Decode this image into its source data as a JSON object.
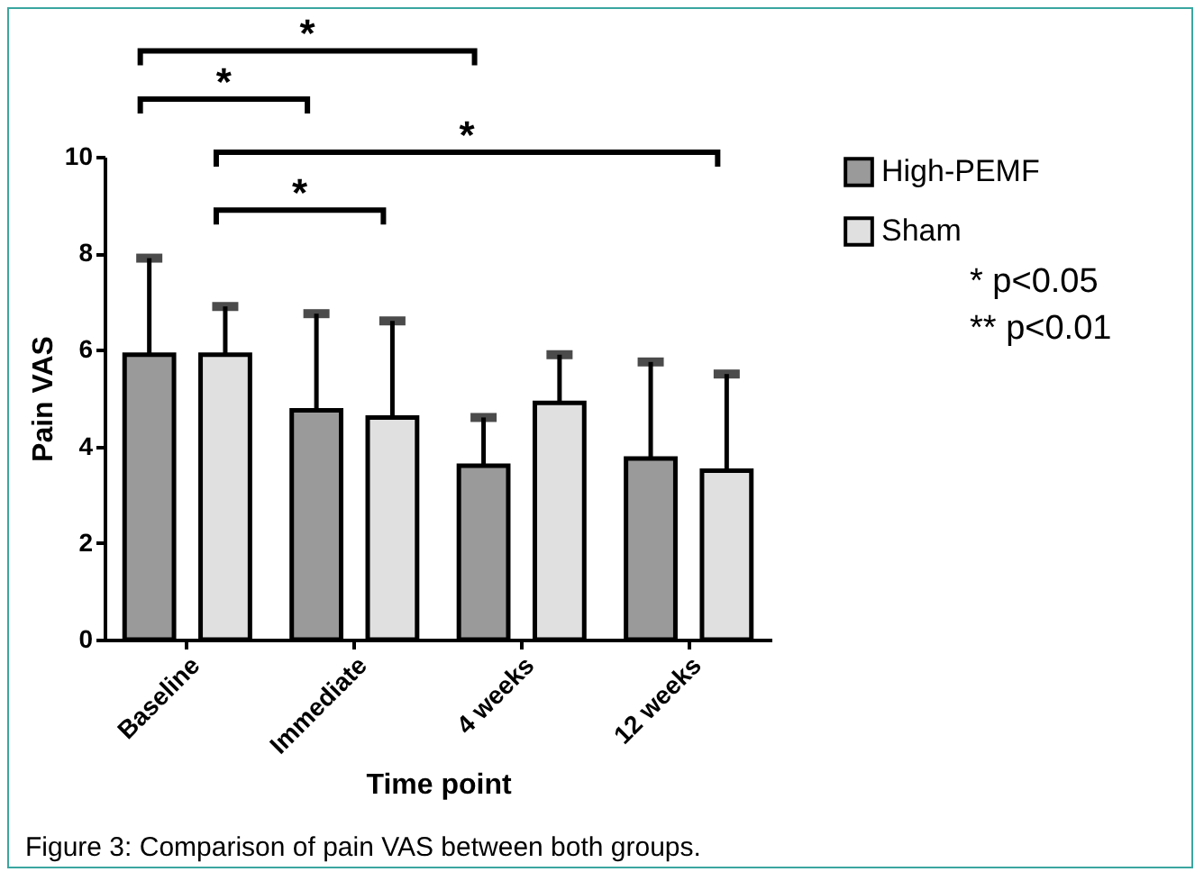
{
  "chart_data": {
    "type": "bar",
    "xlabel": "Time point",
    "ylabel": "Pain VAS",
    "categories": [
      "Baseline",
      "Immediate",
      "4 weeks",
      "12 weeks"
    ],
    "series": [
      {
        "name": "High-PEMF",
        "color": "#9a9a9a",
        "values": [
          5.9,
          4.75,
          3.6,
          3.75
        ],
        "errors": [
          2.0,
          2.0,
          1.0,
          2.0
        ]
      },
      {
        "name": "Sham",
        "color": "#e0e0e0",
        "values": [
          5.9,
          4.6,
          4.9,
          3.5
        ],
        "errors": [
          1.0,
          2.0,
          1.0,
          2.0
        ]
      }
    ],
    "ylim": [
      0,
      10
    ],
    "yticks": [
      0,
      2,
      4,
      6,
      8,
      10
    ],
    "grid": false,
    "legend": "right",
    "annotations": [
      "*",
      "*",
      "*",
      "*",
      "* p<0.05",
      "** p<0.01",
      "Figure 3: Comparison of pain VAS between both groups."
    ]
  }
}
